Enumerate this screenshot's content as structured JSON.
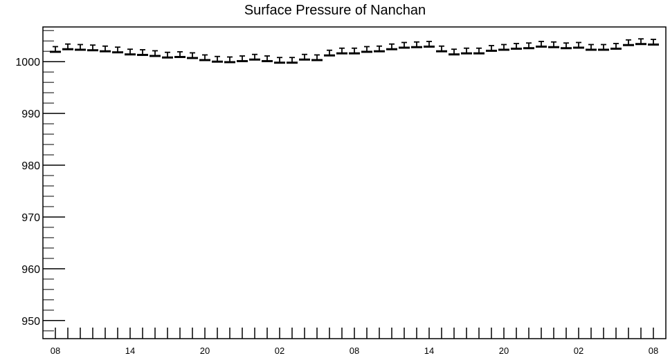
{
  "chart_data": {
    "type": "scatter",
    "title": "Surface Pressure of Nanchan",
    "xlabel": "",
    "ylabel": "",
    "ylim": [
      946.5,
      1006.7
    ],
    "grid": false,
    "legend": "none",
    "y_ticks": [
      950,
      960,
      970,
      980,
      990,
      1000
    ],
    "y_tick_labels": [
      "950",
      "960",
      "970",
      "980",
      "990",
      "1000"
    ],
    "x_tick_labels": [
      "08",
      "14",
      "20",
      "02",
      "08",
      "14",
      "20",
      "02",
      "08"
    ],
    "x_tick_positions": [
      0,
      6,
      12,
      18,
      24,
      30,
      36,
      42,
      48
    ],
    "x_range": [
      -1,
      49
    ],
    "error": 1.0,
    "series": [
      {
        "x": [
          0,
          1,
          2,
          3,
          4,
          5,
          6,
          7,
          8,
          9,
          10,
          11,
          12,
          13,
          14,
          15,
          16,
          17,
          18,
          19,
          20,
          21,
          22,
          23,
          24,
          25,
          26,
          27,
          28,
          29,
          30,
          31,
          32,
          33,
          34,
          35,
          36,
          37,
          38,
          39,
          40,
          41,
          42,
          43,
          44,
          45,
          46,
          47,
          48
        ],
        "values": [
          1001.9,
          1002.4,
          1002.3,
          1002.2,
          1002.0,
          1001.8,
          1001.4,
          1001.3,
          1001.1,
          1000.8,
          1000.9,
          1000.7,
          1000.3,
          1000.0,
          999.9,
          1000.1,
          1000.4,
          1000.1,
          999.8,
          999.8,
          1000.4,
          1000.3,
          1001.2,
          1001.6,
          1001.6,
          1001.9,
          1002.0,
          1002.4,
          1002.7,
          1002.8,
          1002.9,
          1002.0,
          1001.4,
          1001.6,
          1001.6,
          1002.1,
          1002.3,
          1002.5,
          1002.6,
          1002.9,
          1002.8,
          1002.6,
          1002.7,
          1002.3,
          1002.3,
          1002.5,
          1003.2,
          1003.4,
          1003.3
        ]
      }
    ],
    "colors": {
      "marker": "#000000",
      "frame": "#000000",
      "background": "#ffffff"
    }
  }
}
